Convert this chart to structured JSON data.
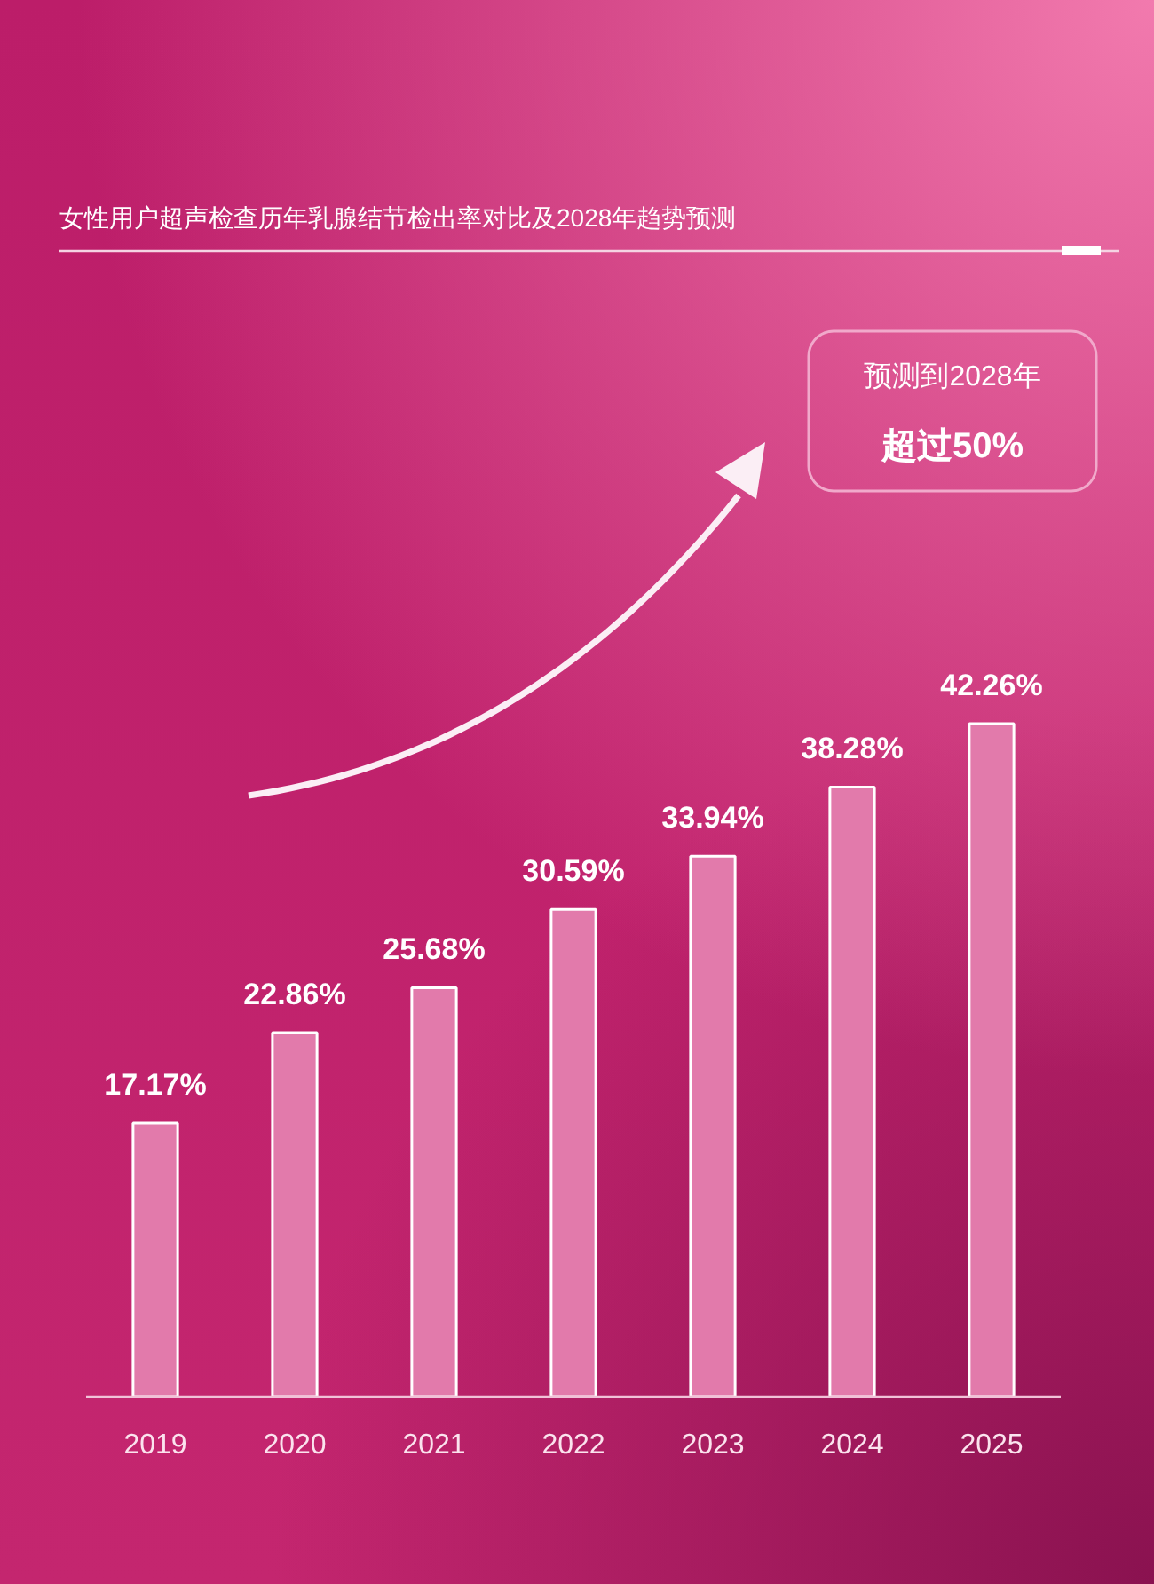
{
  "chart_data": {
    "type": "bar",
    "title": "女性用户超声检查历年乳腺结节检出率对比及2028年趋势预测",
    "categories": [
      "2019",
      "2020",
      "2021",
      "2022",
      "2023",
      "2024",
      "2025"
    ],
    "values": [
      17.17,
      22.86,
      25.68,
      30.59,
      33.94,
      38.28,
      42.26
    ],
    "value_labels": [
      "17.17%",
      "22.86%",
      "25.68%",
      "30.59%",
      "33.94%",
      "38.28%",
      "42.26%"
    ],
    "color": "#e27aab",
    "annotations": [
      "预测到2028年",
      "超过50%"
    ]
  }
}
